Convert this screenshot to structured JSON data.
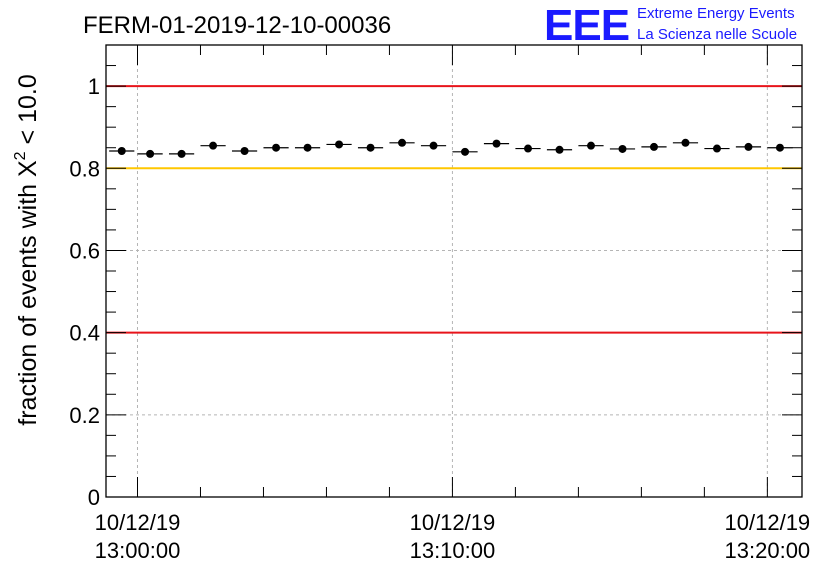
{
  "title": "FERM-01-2019-12-10-00036",
  "logo": {
    "mark": "EEE",
    "line1": "Extreme Energy Events",
    "line2": "La Scienza nelle Scuole"
  },
  "chart_data": {
    "type": "scatter",
    "ylabel_prefix": "fraction of events with ",
    "ylabel_chi": "X",
    "ylabel_sup": "2",
    "ylabel_suffix": " < 10.0",
    "xlabel": "",
    "x_unit": "minutes after 10/12/19 13:00:00",
    "xlim": [
      -1,
      21.1
    ],
    "ylim": [
      0,
      1.1
    ],
    "grid": true,
    "y_ticks": [
      {
        "value": 0,
        "label": "0"
      },
      {
        "value": 0.2,
        "label": "0.2"
      },
      {
        "value": 0.4,
        "label": "0.4"
      },
      {
        "value": 0.6,
        "label": "0.6"
      },
      {
        "value": 0.8,
        "label": "0.8"
      },
      {
        "value": 1,
        "label": "1"
      }
    ],
    "x_ticks": [
      {
        "value": 0,
        "date": "10/12/19",
        "time": "13:00:00"
      },
      {
        "value": 10,
        "date": "10/12/19",
        "time": "13:10:00"
      },
      {
        "value": 20,
        "date": "10/12/19",
        "time": "13:20:00"
      }
    ],
    "reference_lines": [
      {
        "y": 1.0,
        "color": "#e8141b"
      },
      {
        "y": 0.8,
        "color": "#ffc700"
      },
      {
        "y": 0.4,
        "color": "#e8141b"
      }
    ],
    "bin_width": 0.8,
    "points": {
      "x": [
        -0.5,
        0.4,
        1.4,
        2.4,
        3.4,
        4.4,
        5.4,
        6.4,
        7.4,
        8.4,
        9.4,
        10.4,
        11.4,
        12.4,
        13.4,
        14.4,
        15.4,
        16.4,
        17.4,
        18.4,
        19.4,
        20.4
      ],
      "y": [
        0.842,
        0.835,
        0.835,
        0.855,
        0.842,
        0.85,
        0.85,
        0.858,
        0.85,
        0.862,
        0.855,
        0.84,
        0.86,
        0.848,
        0.845,
        0.855,
        0.847,
        0.852,
        0.862,
        0.848,
        0.852,
        0.85
      ],
      "yerr": [
        0.004,
        0.004,
        0.004,
        0.004,
        0.004,
        0.004,
        0.004,
        0.004,
        0.004,
        0.004,
        0.004,
        0.004,
        0.004,
        0.004,
        0.004,
        0.004,
        0.004,
        0.004,
        0.004,
        0.004,
        0.004,
        0.004
      ]
    }
  }
}
